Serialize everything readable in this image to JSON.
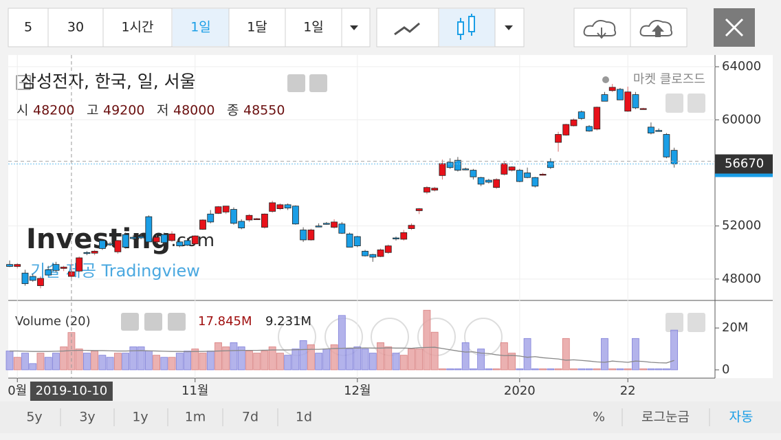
{
  "toolbar": {
    "intervals": [
      "5",
      "30",
      "1시간",
      "1일",
      "1달",
      "1일"
    ]
  },
  "bottom_bar": {
    "ranges": [
      "5y",
      "3y",
      "1y",
      "1m",
      "7d",
      "1d"
    ],
    "options": [
      "%",
      "로그눈금",
      "자동"
    ]
  },
  "chart_data": {
    "type": "candlestick",
    "title": "삼성전자, 한국, 일, 서울",
    "market_status": "마켓 클로즈드",
    "ohlc_readout": [
      {
        "label": "시",
        "value": 48200
      },
      {
        "label": "고",
        "value": 49200
      },
      {
        "label": "저",
        "value": 48000
      },
      {
        "label": "종",
        "value": 48550
      }
    ],
    "watermark_brand": "Investing",
    "watermark_domain": ".com",
    "watermark_credit": "기술 제공 Tradingview",
    "up_color": "#e8111a",
    "down_color": "#1a9ee6",
    "candles": {
      "open": [
        49100,
        48950,
        48450,
        48200,
        47500,
        48700,
        49100,
        48800,
        48200,
        48600,
        50000,
        49950,
        50900,
        50650,
        50050,
        51350,
        51150,
        51200,
        52700,
        50800,
        51350,
        50900,
        50800,
        50900,
        50650,
        51750,
        52900,
        52950,
        53050,
        53250,
        52350,
        52450,
        52550,
        51900,
        53100,
        53300,
        53600,
        53500,
        51700,
        50950,
        52000,
        52200,
        51900,
        52150,
        51400,
        51200,
        50100,
        49850,
        49700,
        50000,
        51100,
        51000,
        51800,
        53150,
        54550,
        54700,
        55800,
        56800,
        56950,
        56300,
        56200,
        55650,
        55450,
        54900,
        55900,
        56200,
        56200,
        56000,
        55650,
        55850,
        56850,
        58300,
        58850,
        59550,
        60600,
        59500,
        59300,
        61900,
        62200,
        62300,
        60650,
        61900,
        60850,
        59450,
        59200,
        58900,
        57700
      ],
      "high": [
        49400,
        49200,
        48700,
        48400,
        48200,
        49000,
        49300,
        49000,
        49200,
        49700,
        50100,
        50200,
        50900,
        50800,
        50950,
        51500,
        51300,
        51400,
        52800,
        51300,
        51500,
        51600,
        51000,
        51100,
        51300,
        52500,
        53200,
        53500,
        53500,
        53400,
        52500,
        52900,
        52600,
        52950,
        53900,
        53700,
        53700,
        53550,
        51900,
        51800,
        52200,
        52300,
        52500,
        52300,
        51500,
        51250,
        50200,
        49900,
        50300,
        50600,
        51200,
        51700,
        52200,
        53350,
        55000,
        54950,
        57000,
        57100,
        57200,
        56400,
        56300,
        55700,
        55550,
        55600,
        56900,
        56500,
        56300,
        56400,
        55700,
        56000,
        57100,
        59100,
        59700,
        60100,
        60700,
        59600,
        61000,
        62100,
        62700,
        62400,
        62500,
        62100,
        60900,
        59800,
        59350,
        59000,
        57900
      ],
      "low": [
        48900,
        48800,
        47500,
        47800,
        47300,
        48300,
        48500,
        48600,
        48000,
        48500,
        49800,
        49800,
        50200,
        50500,
        49900,
        50300,
        50950,
        51000,
        50700,
        50700,
        50650,
        50800,
        50400,
        50500,
        50600,
        51700,
        52200,
        52900,
        52900,
        52100,
        51750,
        52300,
        52500,
        51800,
        53000,
        53200,
        53200,
        52100,
        50800,
        50900,
        51900,
        52100,
        51800,
        51400,
        50400,
        50400,
        49700,
        49300,
        49650,
        49900,
        50900,
        50900,
        51700,
        52900,
        54400,
        54600,
        55500,
        56300,
        56100,
        56200,
        55500,
        55000,
        55200,
        54800,
        55800,
        56100,
        55300,
        55600,
        54900,
        55800,
        56300,
        57600,
        58800,
        59500,
        60000,
        59100,
        59200,
        61400,
        62100,
        61500,
        60600,
        60800,
        60850,
        58900,
        59100,
        57100,
        56400
      ],
      "close": [
        48950,
        49100,
        47650,
        47900,
        48050,
        48300,
        48650,
        48900,
        48550,
        49600,
        49950,
        50100,
        50300,
        50600,
        50900,
        50400,
        51050,
        51100,
        50800,
        51150,
        50750,
        51400,
        50500,
        50550,
        51250,
        52450,
        52300,
        53450,
        53500,
        52200,
        51850,
        52800,
        52550,
        52900,
        53750,
        53600,
        53350,
        52150,
        50950,
        51700,
        51950,
        52150,
        52300,
        51450,
        50400,
        50500,
        49750,
        49650,
        50200,
        50500,
        51050,
        51500,
        52050,
        53300,
        54900,
        54850,
        56700,
        56400,
        56200,
        56250,
        55700,
        55150,
        55300,
        55500,
        56700,
        56450,
        55350,
        55650,
        55000,
        55900,
        56400,
        58900,
        59650,
        60000,
        60100,
        59150,
        60950,
        61400,
        62450,
        61500,
        62100,
        60900,
        60850,
        59000,
        59150,
        57200,
        56670
      ]
    },
    "ylim": [
      46440,
      64780
    ],
    "yticks": [
      48000,
      52000,
      60000,
      64000
    ],
    "last_price": 56670,
    "xticks": [
      {
        "value": 1,
        "label": "0월"
      },
      {
        "value": 24,
        "label": "11월"
      },
      {
        "value": 45,
        "label": "12월"
      },
      {
        "value": 66,
        "label": "2020"
      },
      {
        "value": 80,
        "label": "22"
      }
    ],
    "crosshair": {
      "value": 8,
      "label": "2019-10-10"
    },
    "volume": {
      "title": "Volume (20)",
      "up_color": "#e8a3a3",
      "down_color": "#a6a6e8",
      "ma_color": "#888888",
      "values": [
        9,
        6,
        8,
        3,
        8,
        6,
        8,
        11,
        17.845,
        10,
        8,
        9,
        7,
        6,
        8,
        8,
        11,
        11,
        9,
        7,
        6,
        6,
        8,
        9,
        10,
        8,
        9,
        13,
        11,
        13,
        11,
        9,
        8,
        9,
        11,
        8,
        7,
        10,
        14,
        12,
        8,
        10,
        12,
        26,
        10,
        11,
        10,
        8,
        13,
        11,
        8,
        7,
        10,
        10,
        28.5,
        18,
        0.5,
        0.5,
        0.5,
        13,
        0.5,
        10,
        0.5,
        0.5,
        13,
        8,
        0.5,
        15,
        0.5,
        0.5,
        0.5,
        0.5,
        15,
        0.5,
        0.5,
        0.5,
        0.5,
        15,
        0.5,
        0.5,
        0.5,
        15,
        0.5,
        0.5,
        0.5,
        0.5,
        19
      ],
      "ma": [
        9.0,
        9.0,
        8.9,
        8.8,
        8.8,
        8.8,
        8.9,
        9.0,
        9.231,
        9.3,
        9.3,
        9.2,
        9.2,
        9.1,
        9.0,
        9.0,
        9.1,
        9.2,
        9.1,
        9.0,
        8.9,
        8.8,
        8.8,
        8.7,
        8.8,
        8.8,
        8.9,
        9.0,
        9.1,
        9.2,
        9.3,
        9.3,
        9.3,
        9.4,
        9.5,
        9.5,
        9.5,
        9.6,
        9.7,
        9.8,
        9.8,
        10.0,
        10.2,
        10.3,
        10.4,
        10.4,
        10.5,
        10.4,
        10.4,
        10.5,
        10.4,
        10.4,
        10.3,
        10.6,
        10.7,
        10.8,
        10.2,
        9.6,
        9.0,
        8.5,
        8.6,
        8.0,
        7.8,
        7.2,
        6.8,
        6.9,
        6.6,
        6.0,
        6.3,
        5.8,
        5.5,
        5.2,
        4.6,
        4.8,
        4.5,
        4.2,
        3.8,
        3.6,
        4.2,
        3.9,
        3.6,
        4.2,
        4.0,
        3.6,
        3.4,
        3.3,
        4.5
      ],
      "ylim": [
        -3.3,
        28.9
      ],
      "yticks": [
        0,
        {
          "value": 20,
          "label": "20M"
        }
      ],
      "readout": [
        {
          "value": 17.845,
          "label": "17.845M"
        },
        {
          "value": 9.231,
          "label": "9.231M"
        }
      ]
    }
  }
}
